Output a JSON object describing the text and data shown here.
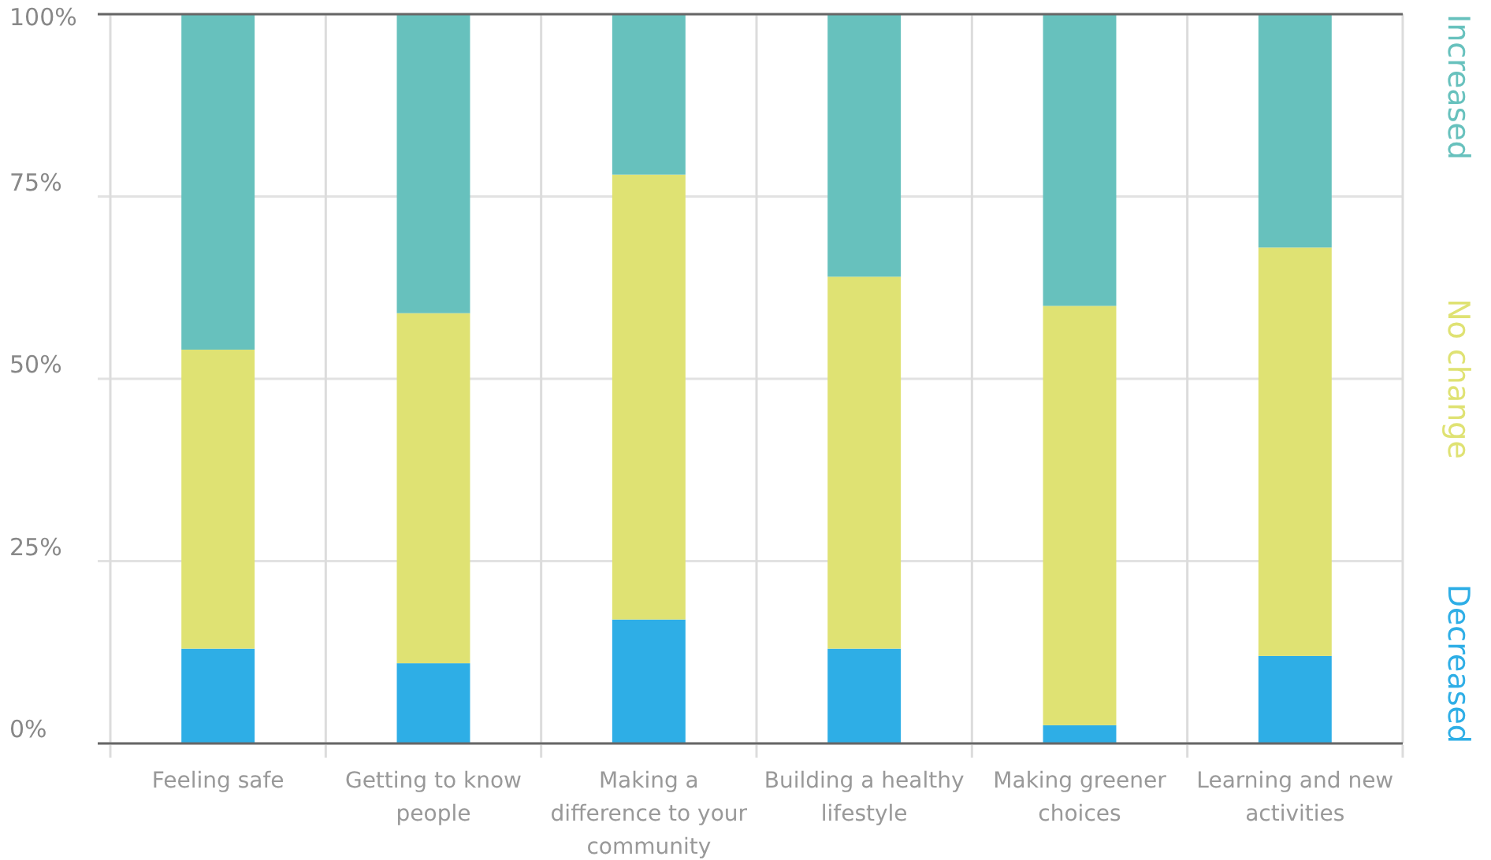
{
  "chart_data": {
    "type": "bar",
    "stacked": true,
    "categories": [
      "Feeling safe",
      "Getting to know people",
      "Making a difference to your community",
      "Building a healthy lifestyle",
      "Making greener choices",
      "Learning and new activities"
    ],
    "series": [
      {
        "name": "Decreased",
        "color": "#2eaee6",
        "values": [
          13,
          11,
          17,
          13,
          2.5,
          12
        ]
      },
      {
        "name": "No change",
        "color": "#dfe273",
        "values": [
          41,
          48,
          61,
          51,
          57.5,
          56
        ]
      },
      {
        "name": "Increased",
        "color": "#67c1bd",
        "values": [
          46,
          41,
          22,
          36,
          40,
          32
        ]
      }
    ],
    "ylim": [
      0,
      100
    ],
    "yticks": [
      {
        "value": 0,
        "label": "0%"
      },
      {
        "value": 25,
        "label": "25%"
      },
      {
        "value": 50,
        "label": "50%"
      },
      {
        "value": 75,
        "label": "75%"
      },
      {
        "value": 100,
        "label": "100%"
      }
    ],
    "grid": true,
    "legend": "right"
  }
}
